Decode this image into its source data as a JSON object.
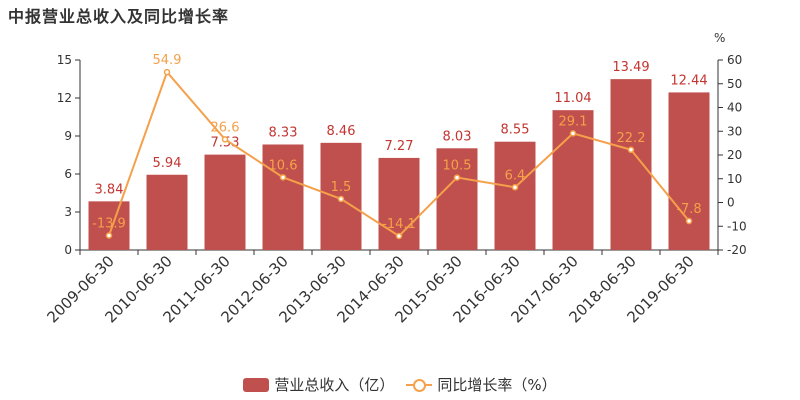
{
  "title": "中报营业总收入及同比增长率",
  "chart_data": {
    "type": "bar",
    "categories": [
      "2009-06-30",
      "2010-06-30",
      "2011-06-30",
      "2012-06-30",
      "2013-06-30",
      "2014-06-30",
      "2015-06-30",
      "2016-06-30",
      "2017-06-30",
      "2018-06-30",
      "2019-06-30"
    ],
    "series": [
      {
        "name": "营业总收入（亿）",
        "type": "bar",
        "axis": "left",
        "values": [
          3.84,
          5.94,
          7.53,
          8.33,
          8.46,
          7.27,
          8.03,
          8.55,
          11.04,
          13.49,
          12.44
        ],
        "labels": [
          "3.84",
          "5.94",
          "7.53",
          "8.33",
          "8.46",
          "7.27",
          "8.03",
          "8.55",
          "11.04",
          "13.49",
          "12.44"
        ]
      },
      {
        "name": "同比增长率（%）",
        "type": "line",
        "axis": "right",
        "values": [
          -13.9,
          54.9,
          26.6,
          10.6,
          1.5,
          -14.1,
          10.5,
          6.4,
          29.1,
          22.2,
          -7.8
        ],
        "labels": [
          "-13.9",
          "54.9",
          "26.6",
          "10.6",
          "1.5",
          "-14.1",
          "10.5",
          "6.4",
          "29.1",
          "22.2",
          "-7.8"
        ]
      }
    ],
    "y_left": {
      "ylim": [
        0,
        15
      ],
      "ticks": [
        "0",
        "3",
        "6",
        "9",
        "12",
        "15"
      ]
    },
    "y_right": {
      "ylim": [
        -20,
        60
      ],
      "unit": "%",
      "ticks": [
        "-20",
        "-10",
        "0",
        "10",
        "20",
        "30",
        "40",
        "50",
        "60"
      ]
    },
    "grid": false,
    "legend_position": "bottom-center",
    "colors": {
      "bar": "#c0504d",
      "line": "#f5a04a",
      "bar_label": "#c23531"
    }
  }
}
